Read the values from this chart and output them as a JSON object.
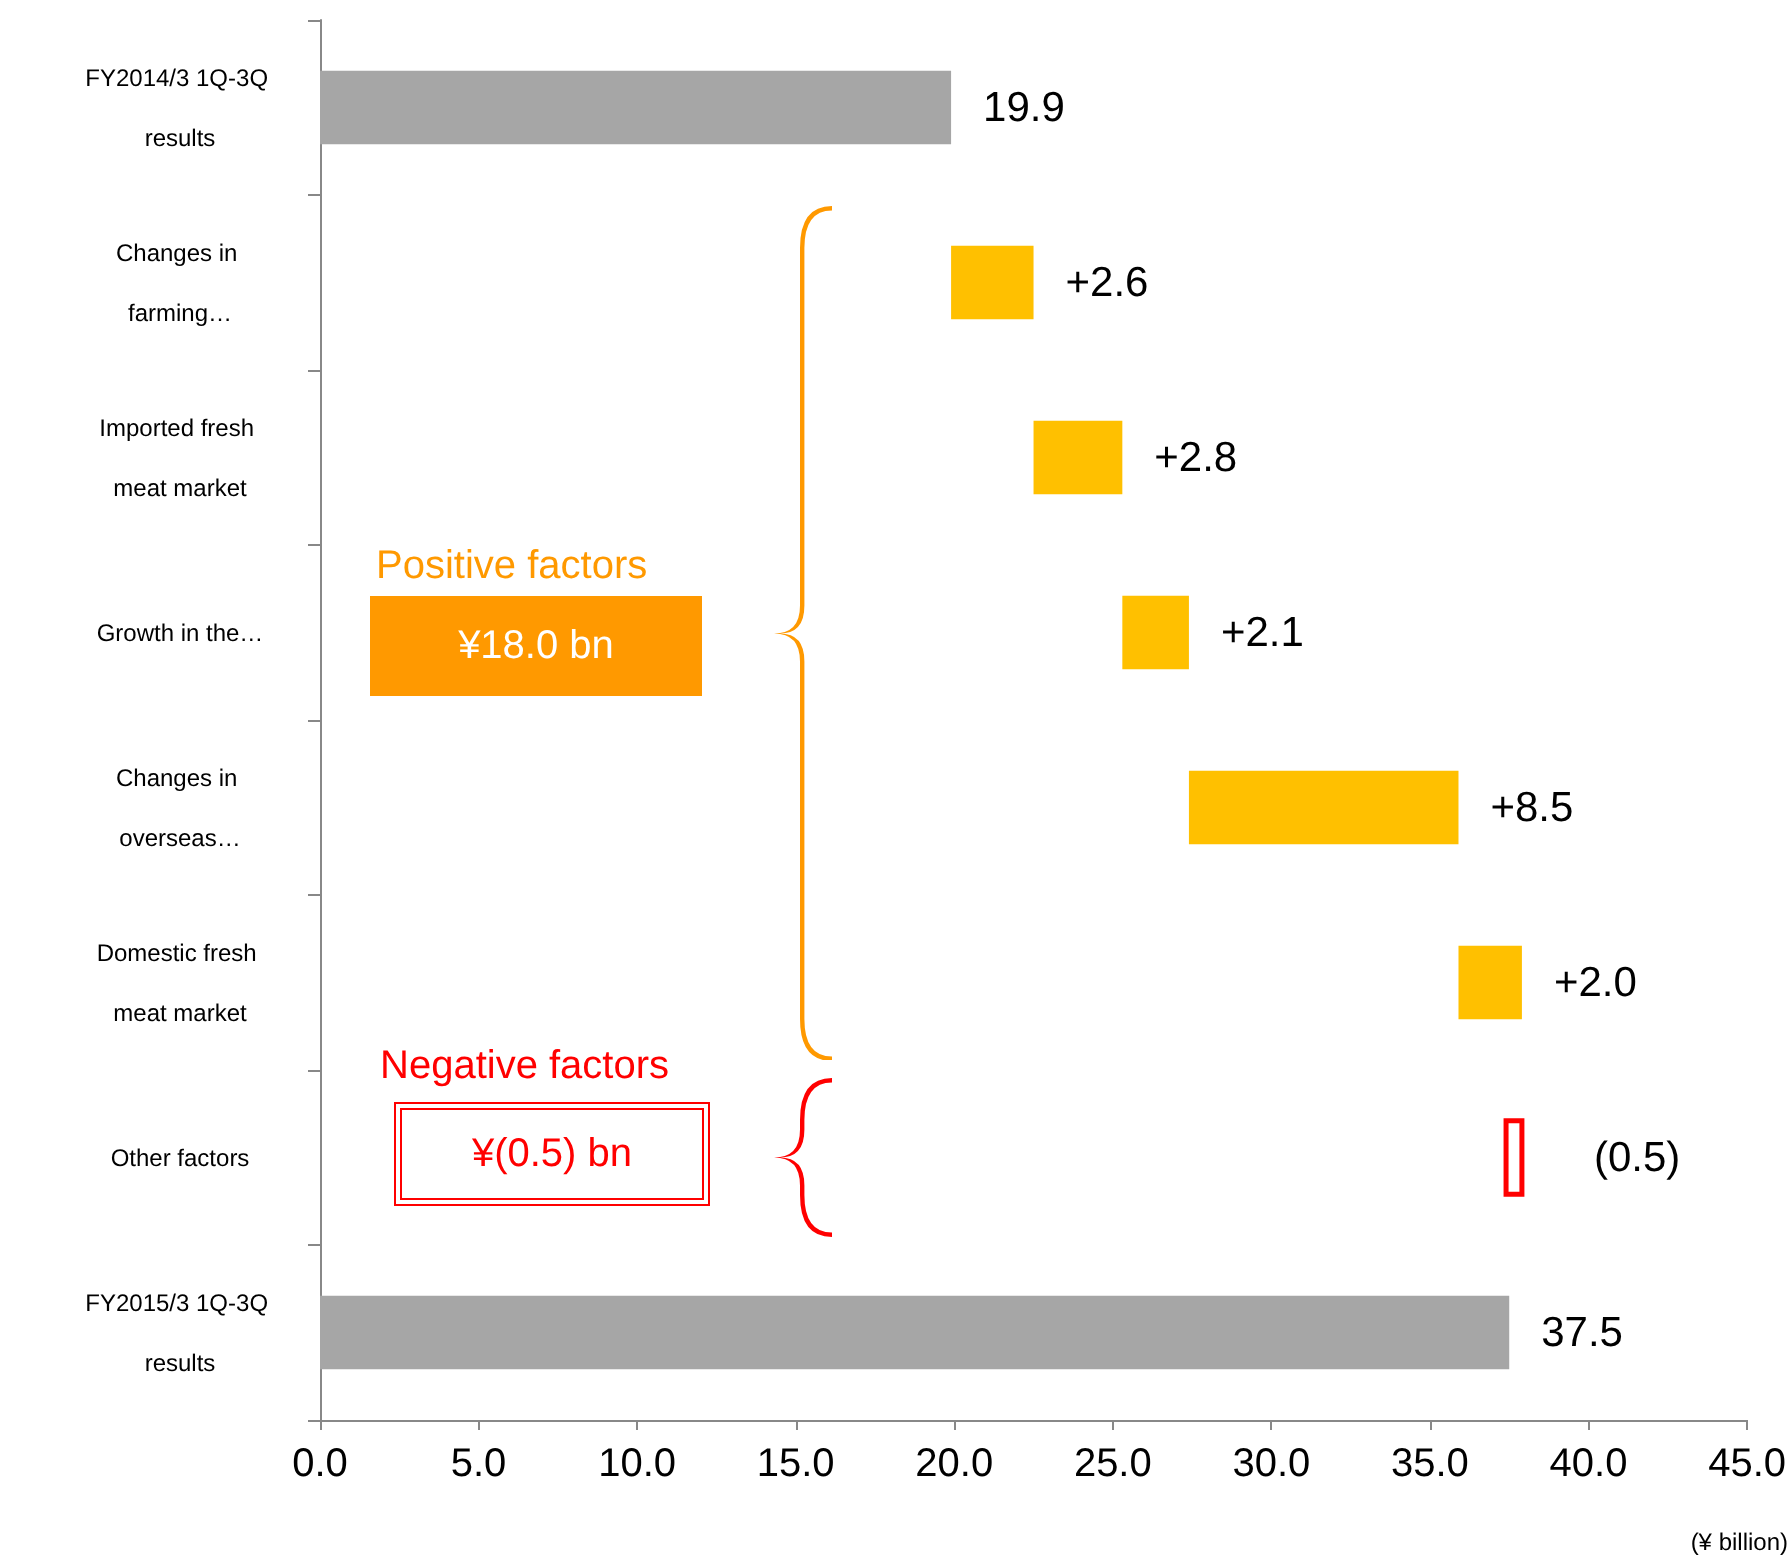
{
  "chart_data": {
    "type": "bar",
    "orientation": "horizontal",
    "xlabel": "(¥ billion)",
    "categories": [
      "FY2014/3 1Q-3Q results",
      "Changes in farming…",
      "Imported fresh meat market",
      "Growth in the…",
      "Changes in overseas…",
      "Domestic fresh meat market",
      "Other factors",
      "FY2015/3 1Q-3Q results"
    ],
    "values": [
      19.9,
      2.6,
      2.8,
      2.1,
      8.5,
      2.0,
      -0.5,
      37.5
    ],
    "base": [
      0,
      19.9,
      22.5,
      25.3,
      27.4,
      35.9,
      37.9,
      0
    ],
    "colors": [
      "#a6a6a6",
      "#ffc000",
      "#ffc000",
      "#ffc000",
      "#ffc000",
      "#ffc000",
      "#ff0000",
      "#a6a6a6"
    ],
    "value_labels": [
      "19.9",
      "+2.6",
      "+2.8",
      "+2.1",
      "+8.5",
      "+2.0",
      "(0.5)",
      "37.5"
    ],
    "xlim": [
      0,
      45
    ],
    "xticks": [
      {
        "value": 0,
        "label": "0.0"
      },
      {
        "value": 5,
        "label": "5.0"
      },
      {
        "value": 10,
        "label": "10.0"
      },
      {
        "value": 15,
        "label": "15.0"
      },
      {
        "value": 20,
        "label": "20.0"
      },
      {
        "value": 25,
        "label": "25.0"
      },
      {
        "value": 30,
        "label": "30.0"
      },
      {
        "value": 35,
        "label": "35.0"
      },
      {
        "value": 40,
        "label": "40.0"
      },
      {
        "value": 45,
        "label": "45.0"
      }
    ],
    "annotations": [
      "Positive factors",
      "¥18.0 bn",
      "Negative factors",
      "¥(0.5) bn"
    ],
    "grid": false
  }
}
